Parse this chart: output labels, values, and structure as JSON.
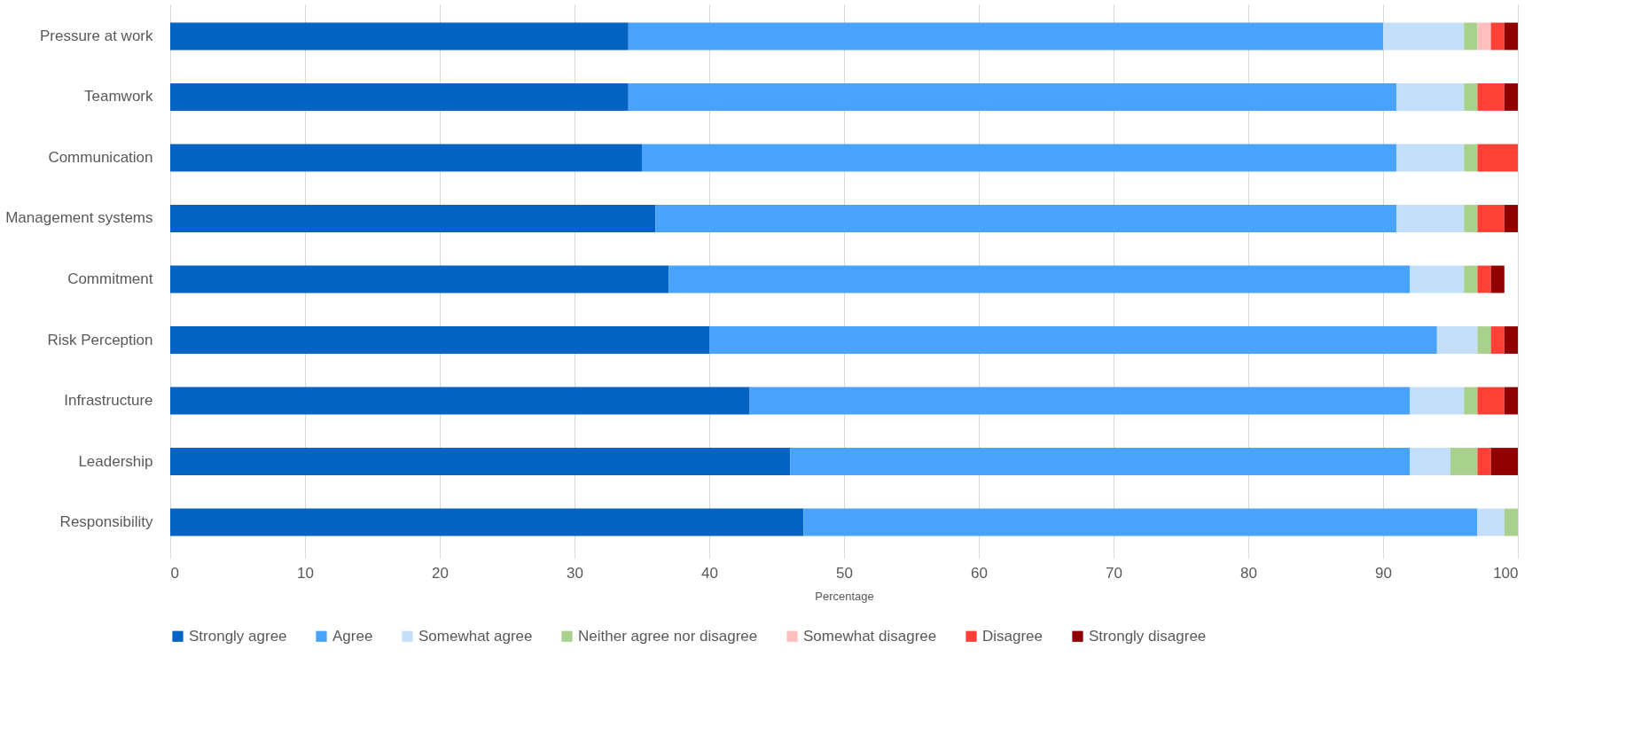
{
  "chart_data": {
    "type": "bar",
    "orientation": "horizontal",
    "stacked": true,
    "xlabel": "Percentage",
    "xlim": [
      0,
      100
    ],
    "xticks": [
      0,
      10,
      20,
      30,
      40,
      50,
      60,
      70,
      80,
      90,
      100
    ],
    "grid": "x",
    "legend": "bottom",
    "categories": [
      "Pressure at work",
      "Teamwork",
      "Communication",
      "Management systems",
      "Commitment",
      "Risk Perception",
      "Infrastructure",
      "Leadership",
      "Responsibility"
    ],
    "series": [
      {
        "name": "Strongly agree",
        "color": "#0563c1",
        "values": [
          34,
          34,
          35,
          36,
          37,
          40,
          43,
          46,
          47
        ]
      },
      {
        "name": "Agree",
        "color": "#4aa3fb",
        "values": [
          56,
          57,
          56,
          55,
          55,
          54,
          49,
          46,
          50
        ]
      },
      {
        "name": "Somewhat agree",
        "color": "#c3dffa",
        "values": [
          6,
          5,
          5,
          5,
          4,
          3,
          4,
          3,
          2
        ]
      },
      {
        "name": "Neither agree nor disagree",
        "color": "#a9d18e",
        "values": [
          1,
          1,
          1,
          1,
          1,
          1,
          1,
          2,
          1
        ]
      },
      {
        "name": "Somewhat disagree",
        "color": "#ffbfbf",
        "values": [
          1,
          null,
          null,
          null,
          null,
          null,
          null,
          null,
          null
        ]
      },
      {
        "name": "Disagree",
        "color": "#ff4036",
        "values": [
          1,
          2,
          3,
          2,
          1,
          1,
          2,
          1,
          null
        ]
      },
      {
        "name": "Strongly disagree",
        "color": "#900000",
        "values": [
          1,
          1,
          null,
          1,
          1,
          1,
          1,
          2,
          null
        ]
      }
    ]
  }
}
